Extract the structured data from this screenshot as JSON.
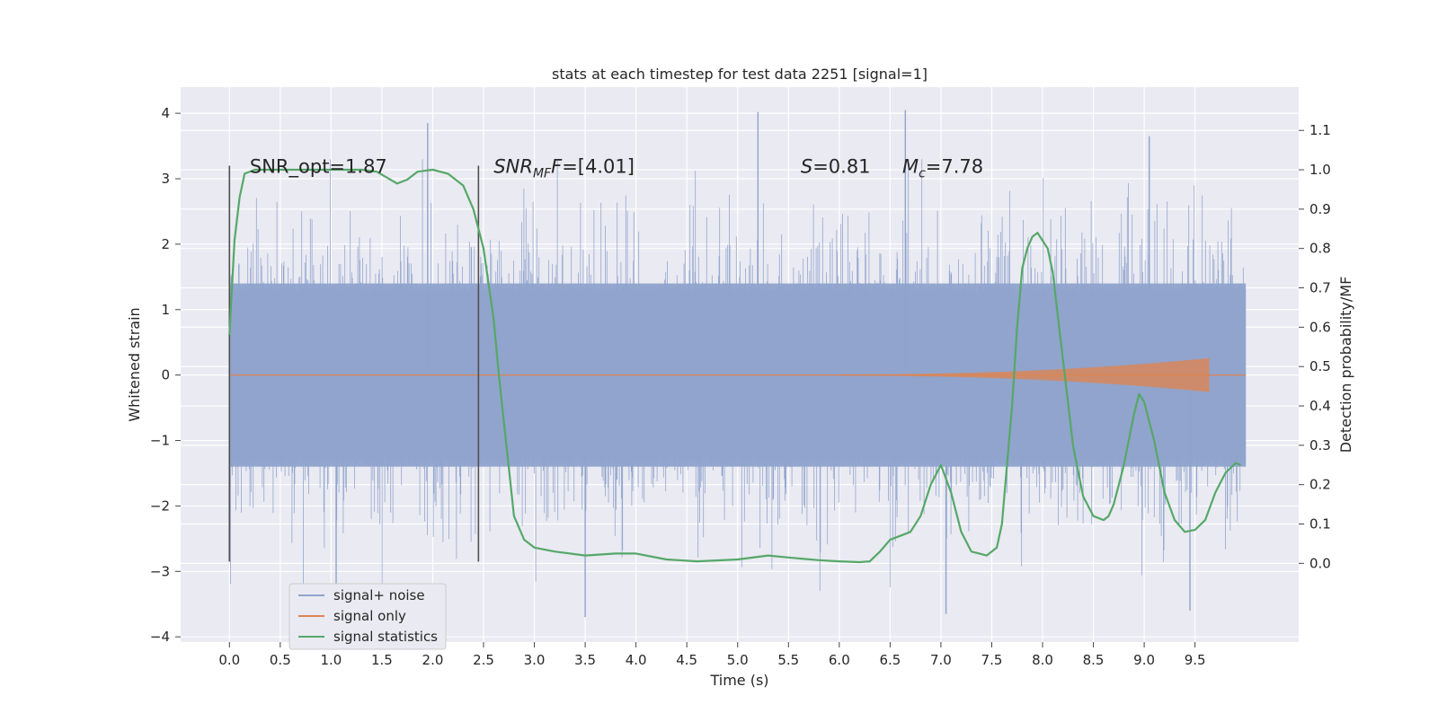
{
  "chart_data": {
    "type": "line",
    "title": "stats at each timestep for test data 2251 [signal=1]",
    "xlabel": "Time (s)",
    "ylabel_left": "Whitened strain",
    "ylabel_right": "Detection probability/MF",
    "xlim": [
      -0.48,
      10.52
    ],
    "ylim_left": [
      -4.08,
      4.4
    ],
    "ylim_right": [
      -0.2,
      1.21
    ],
    "x_ticks": [
      0.0,
      0.5,
      1.0,
      1.5,
      2.0,
      2.5,
      3.0,
      3.5,
      4.0,
      4.5,
      5.0,
      5.5,
      6.0,
      6.5,
      7.0,
      7.5,
      8.0,
      8.5,
      9.0,
      9.5
    ],
    "x_tick_labels": [
      "0.0",
      "0.5",
      "1.0",
      "1.5",
      "2.0",
      "2.5",
      "3.0",
      "3.5",
      "4.0",
      "4.5",
      "5.0",
      "5.5",
      "6.0",
      "6.5",
      "7.0",
      "7.5",
      "8.0",
      "8.5",
      "9.0",
      "9.5"
    ],
    "y_left_ticks": [
      4,
      3,
      2,
      1,
      0,
      -1,
      -2,
      -3,
      -4
    ],
    "y_left_tick_labels": [
      "4",
      "3",
      "2",
      "1",
      "0",
      "−1",
      "−2",
      "−3",
      "−4"
    ],
    "y_right_ticks": [
      1.1,
      1.0,
      0.9,
      0.8,
      0.7,
      0.6,
      0.5,
      0.4,
      0.3,
      0.2,
      0.1,
      0.0
    ],
    "y_right_tick_labels": [
      "1.1",
      "1.0",
      "0.9",
      "0.8",
      "0.7",
      "0.6",
      "0.5",
      "0.4",
      "0.3",
      "0.2",
      "0.1",
      "0.0"
    ],
    "grid": true,
    "legend_position": "lower-left",
    "colors": {
      "background": "#eaeaf2",
      "signal_noise": "#8fa3cc",
      "signal_only": "#dd8452",
      "signal_statistics": "#55a868",
      "marker_line": "#505050"
    },
    "series": [
      {
        "name": "signal+ noise",
        "axis": "left",
        "kind": "noise-band",
        "x_range": [
          0.0,
          10.0
        ],
        "core_amplitude": 1.4,
        "notable_peaks": [
          {
            "x": 1.95,
            "y": 3.85
          },
          {
            "x": 5.2,
            "y": 4.02
          },
          {
            "x": 6.65,
            "y": 4.05
          },
          {
            "x": 9.05,
            "y": 3.65
          },
          {
            "x": 7.05,
            "y": -3.65
          },
          {
            "x": 3.5,
            "y": -3.7
          },
          {
            "x": 9.45,
            "y": -3.6
          },
          {
            "x": 1.05,
            "y": -3.2
          }
        ]
      },
      {
        "name": "signal only",
        "axis": "left",
        "kind": "chirp",
        "x_range": [
          0.0,
          9.65
        ],
        "max_amplitude": 0.25,
        "merger_time": 9.65
      },
      {
        "name": "signal statistics",
        "axis": "right",
        "x": [
          0.0,
          0.05,
          0.1,
          0.15,
          0.25,
          0.5,
          1.0,
          1.3,
          1.45,
          1.55,
          1.65,
          1.75,
          1.85,
          2.0,
          2.15,
          2.3,
          2.4,
          2.5,
          2.6,
          2.65,
          2.7,
          2.75,
          2.8,
          2.9,
          3.0,
          3.2,
          3.5,
          3.8,
          4.0,
          4.3,
          4.6,
          5.0,
          5.3,
          5.5,
          5.8,
          6.0,
          6.2,
          6.3,
          6.4,
          6.5,
          6.6,
          6.7,
          6.8,
          6.9,
          7.0,
          7.1,
          7.2,
          7.3,
          7.45,
          7.55,
          7.6,
          7.7,
          7.75,
          7.8,
          7.85,
          7.9,
          7.95,
          8.0,
          8.05,
          8.1,
          8.2,
          8.3,
          8.4,
          8.5,
          8.6,
          8.65,
          8.7,
          8.8,
          8.9,
          8.95,
          9.0,
          9.1,
          9.2,
          9.3,
          9.4,
          9.5,
          9.6,
          9.7,
          9.8,
          9.9,
          9.95
        ],
        "values": [
          0.58,
          0.82,
          0.93,
          0.99,
          1.0,
          1.0,
          1.0,
          1.0,
          0.995,
          0.98,
          0.965,
          0.975,
          0.995,
          1.0,
          0.99,
          0.96,
          0.9,
          0.8,
          0.62,
          0.48,
          0.36,
          0.24,
          0.12,
          0.06,
          0.04,
          0.03,
          0.02,
          0.025,
          0.025,
          0.01,
          0.005,
          0.01,
          0.02,
          0.015,
          0.008,
          0.005,
          0.003,
          0.005,
          0.03,
          0.06,
          0.07,
          0.08,
          0.12,
          0.2,
          0.25,
          0.18,
          0.08,
          0.03,
          0.02,
          0.04,
          0.1,
          0.4,
          0.6,
          0.75,
          0.8,
          0.83,
          0.84,
          0.82,
          0.8,
          0.74,
          0.52,
          0.3,
          0.17,
          0.12,
          0.11,
          0.12,
          0.15,
          0.25,
          0.38,
          0.43,
          0.41,
          0.31,
          0.18,
          0.11,
          0.08,
          0.085,
          0.11,
          0.18,
          0.23,
          0.255,
          0.25
        ]
      }
    ],
    "vertical_markers": [
      {
        "x": 0.0,
        "y_range": [
          -2.85,
          3.2
        ]
      },
      {
        "x": 2.45,
        "y_range": [
          -2.85,
          3.2
        ]
      }
    ],
    "annotations": [
      {
        "id": "snr-opt",
        "text": "SNR_opt=1.87",
        "x": 0.2,
        "y": 3.2
      },
      {
        "id": "snr-mf",
        "text_parts": [
          "SNR",
          "MF",
          "F=[4.01]"
        ],
        "x": 2.6,
        "y": 3.2
      },
      {
        "id": "s-value",
        "text_parts": [
          "S",
          "=0.81"
        ],
        "x": 5.62,
        "y": 3.2
      },
      {
        "id": "mc-value",
        "text_parts": [
          "M",
          "c",
          "=7.78"
        ],
        "x": 6.62,
        "y": 3.2
      }
    ],
    "legend": [
      "signal+ noise",
      "signal only",
      "signal statistics"
    ]
  }
}
